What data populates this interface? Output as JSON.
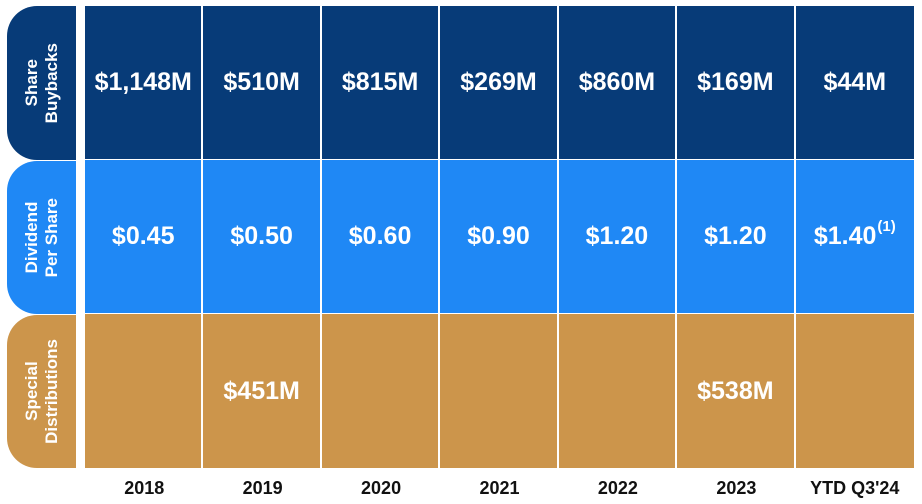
{
  "chart_data": {
    "type": "table",
    "colors": {
      "share_buybacks": "#073b78",
      "dividend_per_share": "#1f88f5",
      "special_distributions": "#cc954b"
    },
    "columns": [
      "2018",
      "2019",
      "2020",
      "2021",
      "2022",
      "2023",
      "YTD Q3'24"
    ],
    "rows": [
      {
        "label_line1": "Share",
        "label_line2": "Buybacks",
        "values": [
          "$1,148M",
          "$510M",
          "$815M",
          "$269M",
          "$860M",
          "$169M",
          "$44M"
        ]
      },
      {
        "label_line1": "Dividend",
        "label_line2": "Per Share",
        "values": [
          "$0.45",
          "$0.50",
          "$0.60",
          "$0.90",
          "$1.20",
          "$1.20",
          "$1.40"
        ],
        "footnote": "(1)"
      },
      {
        "label_line1": "Special",
        "label_line2": "Distributions",
        "values": [
          "",
          "$451M",
          "",
          "",
          "",
          "$538M",
          ""
        ]
      }
    ]
  }
}
